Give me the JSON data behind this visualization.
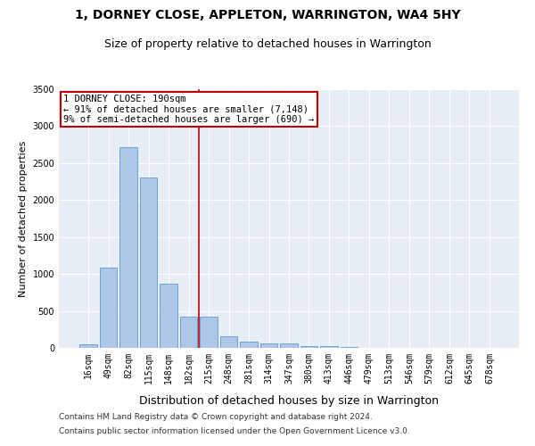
{
  "title": "1, DORNEY CLOSE, APPLETON, WARRINGTON, WA4 5HY",
  "subtitle": "Size of property relative to detached houses in Warrington",
  "xlabel": "Distribution of detached houses by size in Warrington",
  "ylabel": "Number of detached properties",
  "categories": [
    "16sqm",
    "49sqm",
    "82sqm",
    "115sqm",
    "148sqm",
    "182sqm",
    "215sqm",
    "248sqm",
    "281sqm",
    "314sqm",
    "347sqm",
    "380sqm",
    "413sqm",
    "446sqm",
    "479sqm",
    "513sqm",
    "546sqm",
    "579sqm",
    "612sqm",
    "645sqm",
    "678sqm"
  ],
  "values": [
    50,
    1090,
    2720,
    2300,
    870,
    420,
    420,
    160,
    90,
    60,
    55,
    30,
    20,
    10,
    0,
    0,
    0,
    0,
    0,
    0,
    0
  ],
  "bar_color": "#aec6e8",
  "bar_edgecolor": "#5b9bd5",
  "vline_x": 5.5,
  "vline_color": "#c00000",
  "annotation_line1": "1 DORNEY CLOSE: 190sqm",
  "annotation_line2": "← 91% of detached houses are smaller (7,148)",
  "annotation_line3": "9% of semi-detached houses are larger (690) →",
  "annotation_box_color": "#c00000",
  "ylim": [
    0,
    3500
  ],
  "yticks": [
    0,
    500,
    1000,
    1500,
    2000,
    2500,
    3000,
    3500
  ],
  "footer_line1": "Contains HM Land Registry data © Crown copyright and database right 2024.",
  "footer_line2": "Contains public sector information licensed under the Open Government Licence v3.0.",
  "bg_color": "#e8eef5",
  "fig_bg_color": "#ffffff",
  "title_fontsize": 10,
  "subtitle_fontsize": 9,
  "xlabel_fontsize": 9,
  "ylabel_fontsize": 8,
  "tick_fontsize": 7,
  "annotation_fontsize": 7.5,
  "footer_fontsize": 6.5
}
